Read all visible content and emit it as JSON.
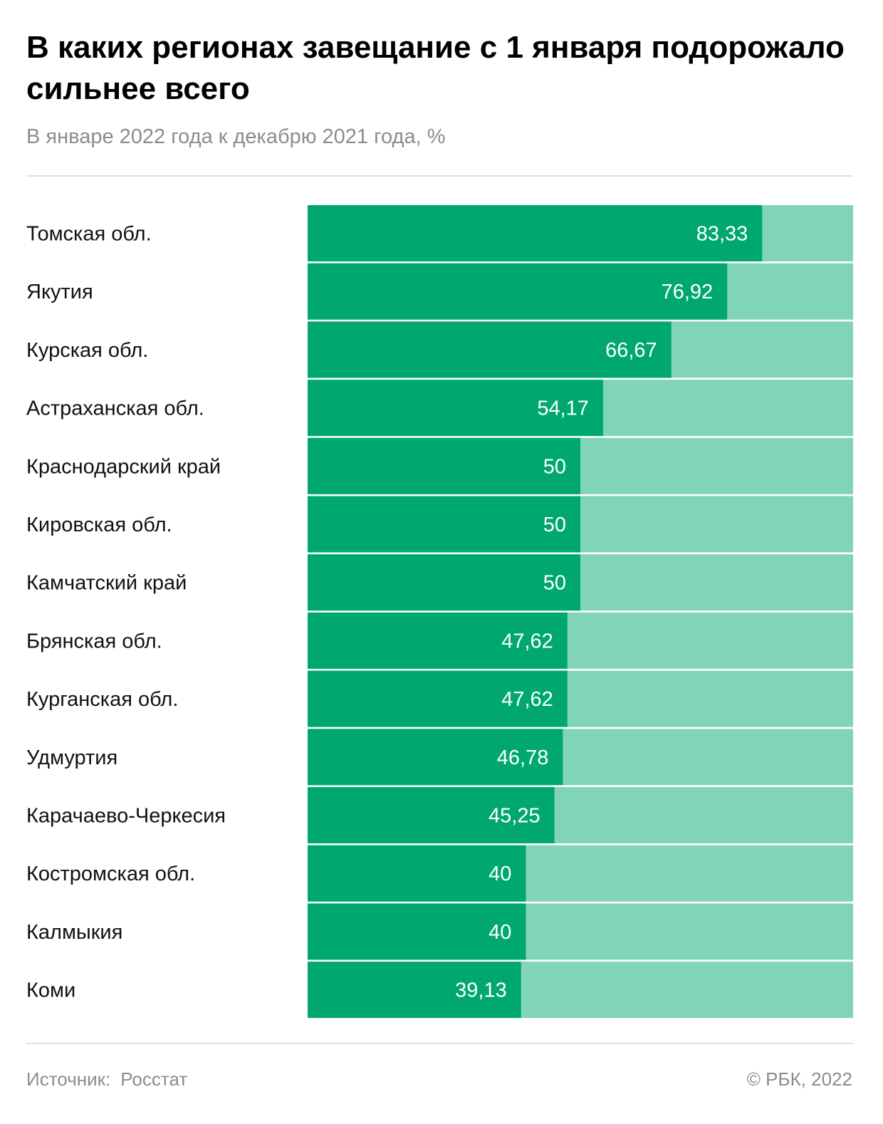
{
  "header": {
    "title": "В каких регионах завещание с 1 января подорожало сильнее всего",
    "subtitle": "В январе 2022 года к декабрю 2021 года, %"
  },
  "footer": {
    "source_label": "Источник:",
    "source_value": "Росстат",
    "copyright": "©  РБК, 2022"
  },
  "colors": {
    "bar": "#00a870",
    "track": "#80d4b7",
    "value_text": "#ffffff",
    "label_text": "#111111"
  },
  "chart_data": {
    "type": "bar",
    "orientation": "horizontal",
    "title": "В каких регионах завещание с 1 января подорожало сильнее всего",
    "subtitle": "В январе 2022 года к декабрю 2021 года, %",
    "categories": [
      "Томская обл.",
      "Якутия",
      "Курская обл.",
      "Астраханская обл.",
      "Краснодарский край",
      "Кировская обл.",
      "Камчатский край",
      "Брянская обл.",
      "Курганская обл.",
      "Удмуртия",
      "Карачаево-Черкесия",
      "Костромская обл.",
      "Калмыкия",
      "Коми"
    ],
    "values": [
      83.33,
      76.92,
      66.67,
      54.17,
      50,
      50,
      50,
      47.62,
      47.62,
      46.78,
      45.25,
      40,
      40,
      39.13
    ],
    "value_labels": [
      "83,33",
      "76,92",
      "66,67",
      "54,17",
      "50",
      "50",
      "50",
      "47,62",
      "47,62",
      "46,78",
      "45,25",
      "40",
      "40",
      "39,13"
    ],
    "xlim": [
      0,
      100
    ],
    "grid": false,
    "legend": "none"
  }
}
